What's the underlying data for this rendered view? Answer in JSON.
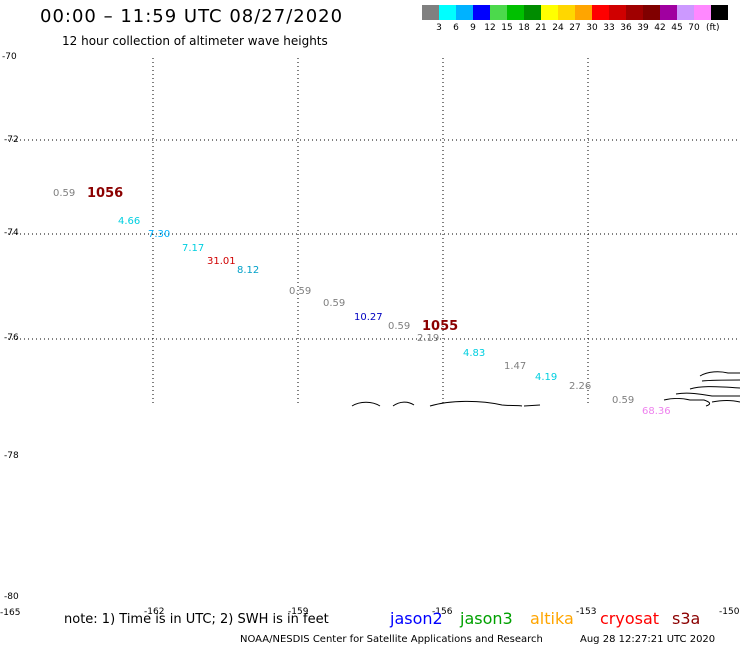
{
  "header": {
    "title": "00:00 – 11:59 UTC 08/27/2020",
    "subtitle": "12 hour collection of altimeter wave heights"
  },
  "legend": {
    "unit": "(ft)",
    "bins": [
      {
        "color": "#808080",
        "label": ""
      },
      {
        "color": "#00ffff",
        "label": "3"
      },
      {
        "color": "#00b2ff",
        "label": "6"
      },
      {
        "color": "#0000ff",
        "label": "9"
      },
      {
        "color": "#4cd94c",
        "label": "12"
      },
      {
        "color": "#00c000",
        "label": "15"
      },
      {
        "color": "#008c00",
        "label": "18"
      },
      {
        "color": "#ffff00",
        "label": "21"
      },
      {
        "color": "#ffd700",
        "label": "24"
      },
      {
        "color": "#ffa500",
        "label": "27"
      },
      {
        "color": "#ff0000",
        "label": "30"
      },
      {
        "color": "#d00000",
        "label": "33"
      },
      {
        "color": "#a00000",
        "label": "36"
      },
      {
        "color": "#800000",
        "label": "39"
      },
      {
        "color": "#a000a0",
        "label": "42"
      },
      {
        "color": "#cc99ff",
        "label": "45"
      },
      {
        "color": "#ff88ff",
        "label": "70"
      },
      {
        "color": "#000000",
        "label": ""
      }
    ]
  },
  "axes": {
    "lat_labels": [
      "-70",
      "-72",
      "-74",
      "-76",
      "-78",
      "-80"
    ],
    "lon_labels": [
      "-165",
      "-162",
      "-159",
      "-156",
      "-153",
      "-150"
    ]
  },
  "observations": [
    {
      "value": "0.59",
      "color": "#808080"
    },
    {
      "value": "4.66",
      "color": "#00cfe0"
    },
    {
      "value": "7.30",
      "color": "#00b2ff"
    },
    {
      "value": "7.17",
      "color": "#00cfe0"
    },
    {
      "value": "31.01",
      "color": "#d00000"
    },
    {
      "value": "8.12",
      "color": "#00a0c8"
    },
    {
      "value": "0.59",
      "color": "#808080"
    },
    {
      "value": "0.59",
      "color": "#808080"
    },
    {
      "value": "10.27",
      "color": "#0000c0"
    },
    {
      "value": "0.59",
      "color": "#808080"
    },
    {
      "value": "2.19",
      "color": "#808080"
    },
    {
      "value": "4.83",
      "color": "#00cfe0"
    },
    {
      "value": "1.47",
      "color": "#808080"
    },
    {
      "value": "4.19",
      "color": "#00cfe0"
    },
    {
      "value": "2.26",
      "color": "#808080"
    },
    {
      "value": "0.59",
      "color": "#808080"
    },
    {
      "value": "68.36",
      "color": "#ee82ee"
    }
  ],
  "peaks": [
    {
      "value": "1056"
    },
    {
      "value": "1055"
    }
  ],
  "footer": {
    "note": "note: 1) Time is in UTC; 2) SWH is in feet",
    "satellites": [
      {
        "name": "jason2",
        "color": "#0000ff"
      },
      {
        "name": "jason3",
        "color": "#00a000"
      },
      {
        "name": "altika",
        "color": "#ffa500"
      },
      {
        "name": "cryosat",
        "color": "#ff0000"
      },
      {
        "name": "s3a",
        "color": "#8b0000"
      }
    ],
    "credit": "NOAA/NESDIS Center for Satellite Applications and Research",
    "generated": "Aug 28 12:27:21 UTC 2020"
  }
}
